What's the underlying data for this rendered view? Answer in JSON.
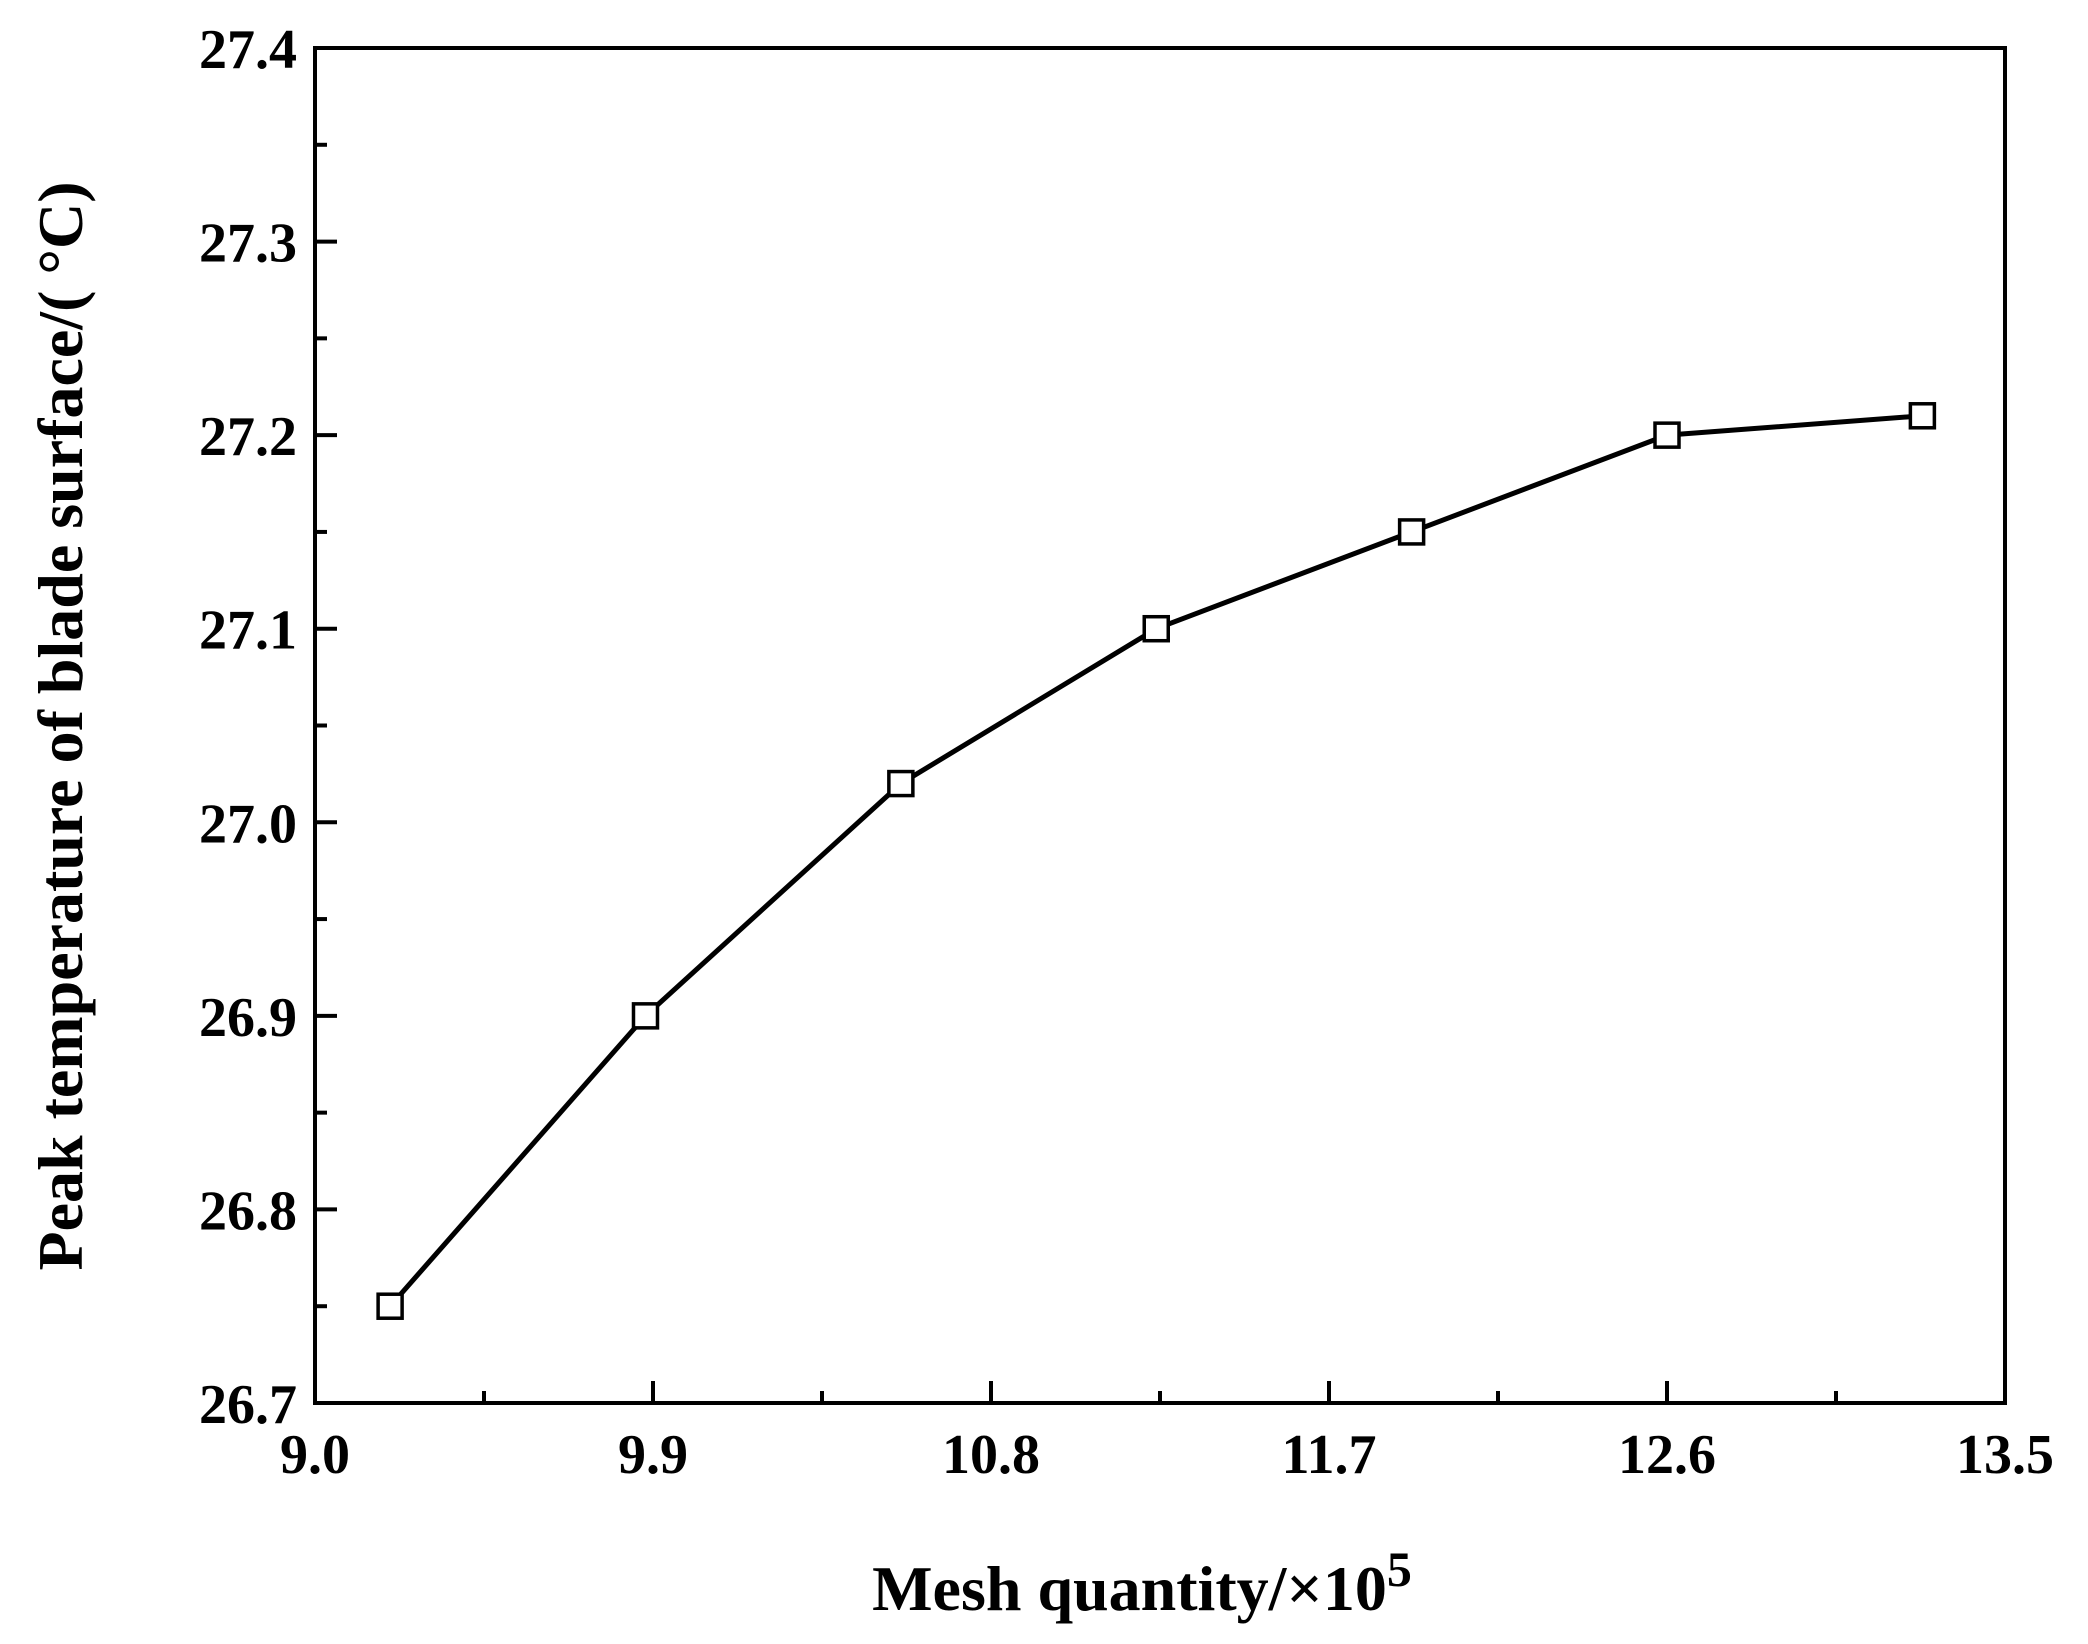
{
  "chart_data": {
    "type": "line",
    "xlabel": "Mesh quantity/×10",
    "xlabel_exponent": "5",
    "ylabel": "Peak temperature of blade surface/( °C)",
    "xlim": [
      9.0,
      13.5
    ],
    "ylim": [
      26.7,
      27.4
    ],
    "xticks": [
      9.0,
      9.9,
      10.8,
      11.7,
      12.6,
      13.5
    ],
    "xtick_labels": [
      "9.0",
      "9.9",
      "10.8",
      "11.7",
      "12.6",
      "13.5"
    ],
    "yticks": [
      26.7,
      26.8,
      26.9,
      27.0,
      27.1,
      27.2,
      27.3,
      27.4
    ],
    "ytick_labels": [
      "26.7",
      "26.8",
      "26.9",
      "27.0",
      "27.1",
      "27.2",
      "27.3",
      "27.4"
    ],
    "grid": false,
    "marker": "open-square",
    "line_color": "#000000",
    "series": [
      {
        "x": [
          9.2,
          9.88,
          10.56,
          11.24,
          11.92,
          12.6,
          13.28
        ],
        "y": [
          26.75,
          26.9,
          27.02,
          27.1,
          27.15,
          27.2,
          27.21
        ]
      }
    ]
  }
}
